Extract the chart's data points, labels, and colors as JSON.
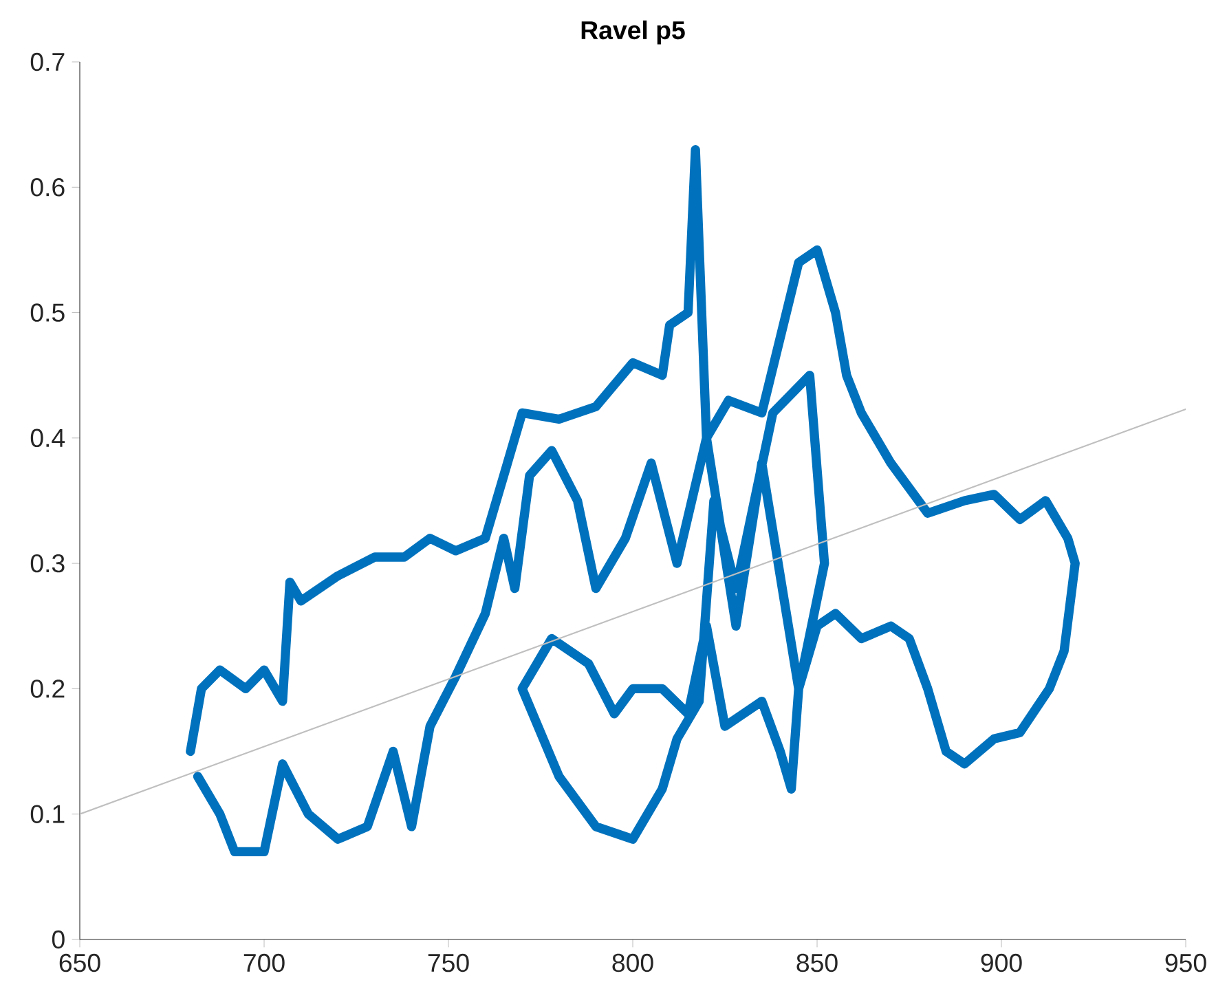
{
  "chart_data": {
    "type": "line",
    "title": "Ravel p5",
    "xlim": [
      650,
      950
    ],
    "ylim": [
      0,
      0.7
    ],
    "xticks": [
      650,
      700,
      750,
      800,
      850,
      900,
      950
    ],
    "yticks": [
      0,
      0.1,
      0.2,
      0.3,
      0.4,
      0.5,
      0.6,
      0.7
    ],
    "grid": false,
    "legend": false,
    "marker": "none",
    "line_style": "solid",
    "series": [
      {
        "color": "#0072bd",
        "x": [
          680,
          683,
          688,
          695,
          700,
          705,
          707,
          710,
          720,
          730,
          738,
          745,
          752,
          760,
          766,
          770,
          780,
          790,
          800,
          808,
          810,
          815,
          817,
          820,
          826,
          835,
          845,
          850,
          855,
          858,
          862,
          870,
          880,
          890,
          898,
          905,
          912,
          918,
          920,
          917,
          913,
          905,
          898,
          890,
          885,
          880,
          875,
          870,
          862,
          855,
          850,
          845,
          843,
          840,
          835,
          825,
          820,
          815,
          808,
          800,
          795,
          788,
          778,
          770,
          780,
          790,
          800,
          808,
          812,
          818,
          822,
          828,
          838,
          848,
          852,
          845,
          835,
          828,
          820,
          812,
          805,
          798,
          790,
          785,
          778,
          772,
          768,
          765,
          760,
          752,
          745,
          740,
          735,
          728,
          720,
          712,
          705,
          700,
          692,
          688,
          682
        ],
        "values": [
          0.15,
          0.2,
          0.215,
          0.2,
          0.215,
          0.19,
          0.285,
          0.27,
          0.29,
          0.305,
          0.305,
          0.32,
          0.31,
          0.32,
          0.38,
          0.42,
          0.415,
          0.425,
          0.46,
          0.45,
          0.49,
          0.5,
          0.63,
          0.4,
          0.43,
          0.42,
          0.54,
          0.55,
          0.5,
          0.45,
          0.42,
          0.38,
          0.34,
          0.35,
          0.355,
          0.335,
          0.35,
          0.32,
          0.3,
          0.23,
          0.2,
          0.165,
          0.16,
          0.14,
          0.15,
          0.2,
          0.24,
          0.25,
          0.24,
          0.26,
          0.25,
          0.2,
          0.12,
          0.15,
          0.19,
          0.17,
          0.25,
          0.18,
          0.2,
          0.2,
          0.18,
          0.22,
          0.24,
          0.2,
          0.13,
          0.09,
          0.08,
          0.12,
          0.16,
          0.19,
          0.35,
          0.28,
          0.42,
          0.45,
          0.3,
          0.2,
          0.38,
          0.25,
          0.4,
          0.3,
          0.38,
          0.32,
          0.28,
          0.35,
          0.39,
          0.37,
          0.28,
          0.32,
          0.26,
          0.21,
          0.17,
          0.09,
          0.15,
          0.09,
          0.08,
          0.1,
          0.14,
          0.07,
          0.07,
          0.1,
          0.13
        ]
      },
      {
        "color": "#bfbfbf",
        "x": [
          650,
          950
        ],
        "values": [
          0.1,
          0.423
        ]
      }
    ]
  }
}
